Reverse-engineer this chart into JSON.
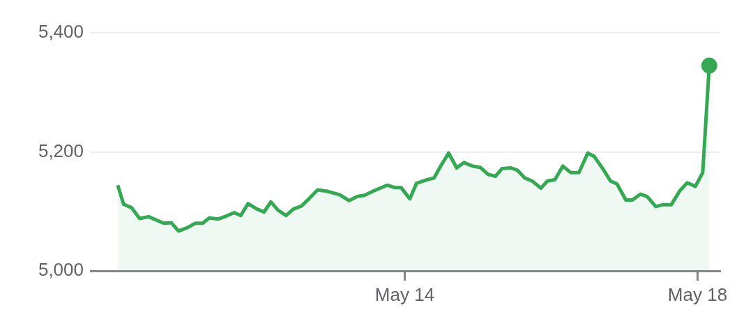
{
  "chart_data": {
    "type": "area",
    "xlim": [
      "--05-09T17:02",
      "--05-18T07:12"
    ],
    "xticks": [
      {
        "value": "--05-14",
        "label": "May 14"
      },
      {
        "value": "--05-18",
        "label": "May 18"
      }
    ],
    "ylim": [
      5000,
      5400
    ],
    "yticks": [
      {
        "value": 5000,
        "label": "5,000"
      },
      {
        "value": 5200,
        "label": "5,200"
      },
      {
        "value": 5400,
        "label": "5,400"
      }
    ],
    "grid": "y",
    "series": [
      {
        "color": "#34a853",
        "x": [
          "--05-10T01:55",
          "--05-10T03:50",
          "--05-10T06:29",
          "--05-10T09:07",
          "--05-10T12:00",
          "--05-10T17:02",
          "--05-10T19:26",
          "--05-10T21:50",
          "--05-11T00:29",
          "--05-11T03:22",
          "--05-11T05:46",
          "--05-11T07:55",
          "--05-11T10:48",
          "--05-11T12:58",
          "--05-11T16:05",
          "--05-11T18:14",
          "--05-11T20:38",
          "--05-11T23:31",
          "--05-12T01:55",
          "--05-12T04:05",
          "--05-12T06:29",
          "--05-12T09:07",
          "--05-12T11:31",
          "--05-12T14:10",
          "--05-12T16:34",
          "--05-12T19:26",
          "--05-12T22:19",
          "--05-13T02:38",
          "--05-13T05:46",
          "--05-13T08:24",
          "--05-13T10:48",
          "--05-13T13:41",
          "--05-13T18:14",
          "--05-13T20:38",
          "--05-13T22:48",
          "--05-14T01:41",
          "--05-14T03:50",
          "--05-14T07:12",
          "--05-14T09:36",
          "--05-14T12:00",
          "--05-14T14:24",
          "--05-14T17:02",
          "--05-14T19:26",
          "--05-14T22:19",
          "--05-15T00:43",
          "--05-15T03:22",
          "--05-15T05:46",
          "--05-15T07:55",
          "--05-15T10:48",
          "--05-15T12:58",
          "--05-15T15:22",
          "--05-15T17:46",
          "--05-15T20:38",
          "--05-15T22:48",
          "--05-16T01:12",
          "--05-16T03:50",
          "--05-16T06:29",
          "--05-16T09:07",
          "--05-16T12:00",
          "--05-16T14:10",
          "--05-16T17:02",
          "--05-16T19:26",
          "--05-16T21:36",
          "--05-17T00:29",
          "--05-17T02:38",
          "--05-17T05:17",
          "--05-17T07:26",
          "--05-17T10:19",
          "--05-17T12:29",
          "--05-17T15:22",
          "--05-17T18:14",
          "--05-17T20:38",
          "--05-17T23:17",
          "--05-18T01:41",
          "--05-18T03:50"
        ],
        "values": [
          5144,
          5112,
          5106,
          5088,
          5091,
          5080,
          5081,
          5067,
          5072,
          5080,
          5080,
          5089,
          5087,
          5091,
          5098,
          5093,
          5113,
          5104,
          5099,
          5116,
          5102,
          5093,
          5104,
          5109,
          5121,
          5136,
          5134,
          5128,
          5118,
          5125,
          5127,
          5134,
          5144,
          5140,
          5140,
          5121,
          5147,
          5153,
          5156,
          5178,
          5198,
          5173,
          5182,
          5176,
          5174,
          5162,
          5159,
          5172,
          5173,
          5169,
          5156,
          5151,
          5139,
          5151,
          5153,
          5176,
          5165,
          5165,
          5198,
          5192,
          5171,
          5151,
          5146,
          5119,
          5119,
          5129,
          5125,
          5108,
          5111,
          5111,
          5135,
          5148,
          5142,
          5165,
          5345
        ]
      },
      {
        "type": "scatter",
        "color": "#34a853",
        "x": [
          "--05-18T03:50"
        ],
        "values": [
          5345
        ]
      }
    ]
  }
}
